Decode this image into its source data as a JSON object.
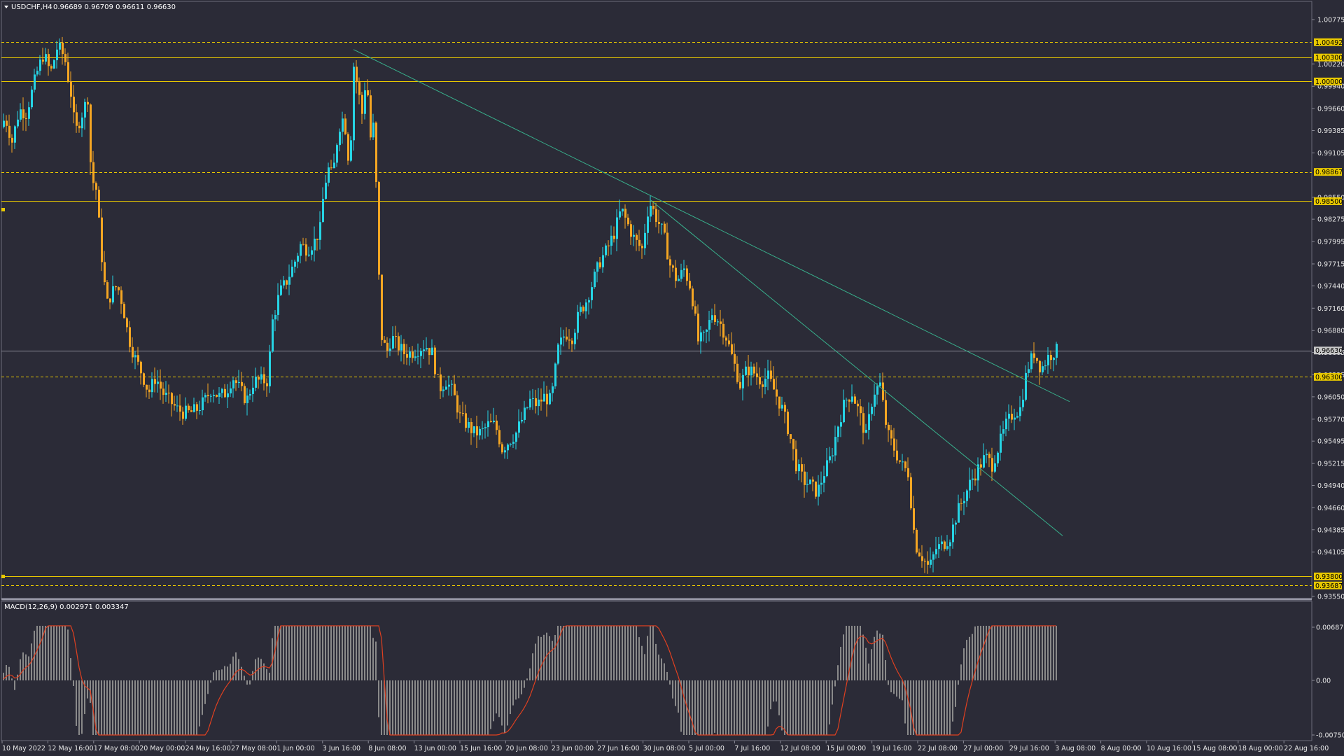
{
  "chart_header": {
    "symbol": "USDCHF,H4",
    "ohlc": "0.96689 0.96709 0.96611 0.96630"
  },
  "macd_header": {
    "label": "MACD(12,26,9) 0.002971 0.003347"
  },
  "colors": {
    "background": "#2b2b37",
    "bull_candle": "#26d4e4",
    "bear_candle": "#f5a623",
    "level_line": "#e8c800",
    "trend_line": "#38b08c",
    "macd_hist": "#8a8a8a",
    "macd_signal": "#e04020",
    "price_tag_bg": "#e8c800",
    "current_price_tag_bg": "#c8c8c8"
  },
  "price_axis": {
    "ticks": [
      "1.00775",
      "1.00220",
      "0.99940",
      "0.99660",
      "0.99385",
      "0.99105",
      "0.98550",
      "0.98275",
      "0.97995",
      "0.97715",
      "0.97440",
      "0.97160",
      "0.96880",
      "0.96605",
      "0.96325",
      "0.96050",
      "0.95770",
      "0.95495",
      "0.95215",
      "0.94940",
      "0.94660",
      "0.94385",
      "0.94105",
      "0.93550"
    ]
  },
  "price_tags": [
    {
      "value": "1.00492",
      "kind": "level"
    },
    {
      "value": "1.00300",
      "kind": "level"
    },
    {
      "value": "1.00000",
      "kind": "level"
    },
    {
      "value": "0.98867",
      "kind": "level"
    },
    {
      "value": "0.98500",
      "kind": "level"
    },
    {
      "value": "0.96630",
      "kind": "current"
    },
    {
      "value": "0.96300",
      "kind": "level"
    },
    {
      "value": "0.93800",
      "kind": "level"
    },
    {
      "value": "0.93687",
      "kind": "level"
    }
  ],
  "horizontal_levels": [
    {
      "price": 1.00492,
      "style": "dashed"
    },
    {
      "price": 1.003,
      "style": "solid"
    },
    {
      "price": 1.0,
      "style": "solid"
    },
    {
      "price": 0.98867,
      "style": "dashed"
    },
    {
      "price": 0.985,
      "style": "solid"
    },
    {
      "price": 0.963,
      "style": "dashed"
    },
    {
      "price": 0.938,
      "style": "solid"
    },
    {
      "price": 0.93687,
      "style": "dashed"
    }
  ],
  "macd_axis": {
    "ticks": [
      "0.006875",
      "0.00",
      "-0.007505"
    ]
  },
  "time_axis": {
    "labels": [
      "10 May 2022",
      "12 May 16:00",
      "17 May 08:00",
      "20 May 00:00",
      "24 May 16:00",
      "27 May 08:00",
      "1 Jun 00:00",
      "3 Jun 16:00",
      "8 Jun 08:00",
      "13 Jun 00:00",
      "15 Jun 16:00",
      "20 Jun 08:00",
      "23 Jun 00:00",
      "27 Jun 16:00",
      "30 Jun 08:00",
      "5 Jul 00:00",
      "7 Jul 16:00",
      "12 Jul 08:00",
      "15 Jul 00:00",
      "19 Jul 16:00",
      "22 Jul 08:00",
      "27 Jul 00:00",
      "29 Jul 16:00",
      "3 Aug 08:00",
      "8 Aug 00:00",
      "10 Aug 16:00",
      "15 Aug 08:00",
      "18 Aug 00:00",
      "22 Aug 16:00"
    ]
  },
  "chart_data": {
    "type": "candlestick",
    "symbol": "USDCHF",
    "timeframe": "H4",
    "ylim": [
      0.9355,
      1.00775
    ],
    "price_path": [
      [
        0,
        0.9935
      ],
      [
        10,
        0.9955
      ],
      [
        20,
        0.9925
      ],
      [
        30,
        0.9965
      ],
      [
        40,
        0.996
      ],
      [
        55,
        1.001
      ],
      [
        65,
        1.0035
      ],
      [
        75,
        1.001
      ],
      [
        85,
        1.0045
      ],
      [
        95,
        1.003
      ],
      [
        105,
        0.998
      ],
      [
        110,
        0.9935
      ],
      [
        120,
        0.996
      ],
      [
        128,
        0.998
      ],
      [
        133,
        0.988
      ],
      [
        140,
        0.9865
      ],
      [
        148,
        0.978
      ],
      [
        155,
        0.972
      ],
      [
        162,
        0.9735
      ],
      [
        170,
        0.9745
      ],
      [
        178,
        0.972
      ],
      [
        186,
        0.968
      ],
      [
        195,
        0.9655
      ],
      [
        205,
        0.9635
      ],
      [
        215,
        0.961
      ],
      [
        225,
        0.963
      ],
      [
        235,
        0.961
      ],
      [
        245,
        0.96
      ],
      [
        255,
        0.959
      ],
      [
        265,
        0.9585
      ],
      [
        275,
        0.9585
      ],
      [
        285,
        0.959
      ],
      [
        295,
        0.96
      ],
      [
        305,
        0.9615
      ],
      [
        315,
        0.9605
      ],
      [
        325,
        0.961
      ],
      [
        335,
        0.963
      ],
      [
        345,
        0.9615
      ],
      [
        355,
        0.96
      ],
      [
        365,
        0.9625
      ],
      [
        375,
        0.9625
      ],
      [
        385,
        0.9625
      ],
      [
        392,
        0.97
      ],
      [
        402,
        0.9735
      ],
      [
        412,
        0.975
      ],
      [
        422,
        0.977
      ],
      [
        432,
        0.9795
      ],
      [
        442,
        0.979
      ],
      [
        452,
        0.98
      ],
      [
        460,
        0.9815
      ],
      [
        466,
        0.987
      ],
      [
        472,
        0.989
      ],
      [
        478,
        0.988
      ],
      [
        484,
        0.9925
      ],
      [
        490,
        0.9955
      ],
      [
        495,
        0.995
      ],
      [
        502,
        0.989
      ],
      [
        508,
        1.002
      ],
      [
        514,
        0.999
      ],
      [
        520,
        0.996
      ],
      [
        526,
        1.001
      ],
      [
        532,
        0.993
      ],
      [
        538,
        0.995
      ],
      [
        542,
        0.979
      ],
      [
        548,
        0.968
      ],
      [
        555,
        0.966
      ],
      [
        562,
        0.968
      ],
      [
        570,
        0.967
      ],
      [
        580,
        0.966
      ],
      [
        590,
        0.966
      ],
      [
        600,
        0.9665
      ],
      [
        610,
        0.967
      ],
      [
        620,
        0.966
      ],
      [
        630,
        0.9615
      ],
      [
        640,
        0.9625
      ],
      [
        650,
        0.961
      ],
      [
        660,
        0.958
      ],
      [
        670,
        0.957
      ],
      [
        680,
        0.956
      ],
      [
        690,
        0.956
      ],
      [
        700,
        0.957
      ],
      [
        710,
        0.957
      ],
      [
        720,
        0.954
      ],
      [
        730,
        0.955
      ],
      [
        740,
        0.956
      ],
      [
        750,
        0.958
      ],
      [
        760,
        0.96
      ],
      [
        770,
        0.9595
      ],
      [
        780,
        0.9605
      ],
      [
        790,
        0.96
      ],
      [
        800,
        0.9665
      ],
      [
        810,
        0.9685
      ],
      [
        820,
        0.968
      ],
      [
        830,
        0.971
      ],
      [
        840,
        0.9725
      ],
      [
        850,
        0.975
      ],
      [
        860,
        0.9775
      ],
      [
        870,
        0.979
      ],
      [
        880,
        0.981
      ],
      [
        890,
        0.984
      ],
      [
        900,
        0.982
      ],
      [
        910,
        0.98
      ],
      [
        920,
        0.979
      ],
      [
        930,
        0.985
      ],
      [
        940,
        0.983
      ],
      [
        950,
        0.981
      ],
      [
        960,
        0.977
      ],
      [
        970,
        0.975
      ],
      [
        980,
        0.9765
      ],
      [
        990,
        0.974
      ],
      [
        1000,
        0.9675
      ],
      [
        1010,
        0.968
      ],
      [
        1020,
        0.971
      ],
      [
        1030,
        0.97
      ],
      [
        1040,
        0.968
      ],
      [
        1050,
        0.965
      ],
      [
        1060,
        0.962
      ],
      [
        1070,
        0.964
      ],
      [
        1080,
        0.9635
      ],
      [
        1090,
        0.9625
      ],
      [
        1100,
        0.963
      ],
      [
        1110,
        0.961
      ],
      [
        1120,
        0.959
      ],
      [
        1130,
        0.956
      ],
      [
        1140,
        0.952
      ],
      [
        1150,
        0.95
      ],
      [
        1160,
        0.9495
      ],
      [
        1170,
        0.9485
      ],
      [
        1180,
        0.951
      ],
      [
        1190,
        0.953
      ],
      [
        1200,
        0.957
      ],
      [
        1210,
        0.96
      ],
      [
        1220,
        0.961
      ],
      [
        1230,
        0.9585
      ],
      [
        1240,
        0.9555
      ],
      [
        1250,
        0.961
      ],
      [
        1260,
        0.962
      ],
      [
        1270,
        0.956
      ],
      [
        1280,
        0.954
      ],
      [
        1290,
        0.952
      ],
      [
        1300,
        0.951
      ],
      [
        1310,
        0.942
      ],
      [
        1320,
        0.9405
      ],
      [
        1330,
        0.939
      ],
      [
        1340,
        0.9415
      ],
      [
        1350,
        0.942
      ],
      [
        1360,
        0.943
      ],
      [
        1370,
        0.946
      ],
      [
        1380,
        0.948
      ],
      [
        1390,
        0.95
      ],
      [
        1400,
        0.9515
      ],
      [
        1410,
        0.953
      ],
      [
        1420,
        0.952
      ],
      [
        1430,
        0.9545
      ],
      [
        1440,
        0.957
      ],
      [
        1450,
        0.9585
      ],
      [
        1460,
        0.959
      ],
      [
        1470,
        0.964
      ],
      [
        1480,
        0.966
      ],
      [
        1490,
        0.964
      ],
      [
        1500,
        0.9655
      ],
      [
        1510,
        0.9663
      ]
    ],
    "trend_lines": [
      {
        "from": [
          505,
          1.004
        ],
        "to": [
          1528,
          0.9599
        ]
      },
      {
        "from": [
          930,
          0.9851
        ],
        "to": [
          1518,
          0.9431
        ]
      }
    ]
  }
}
